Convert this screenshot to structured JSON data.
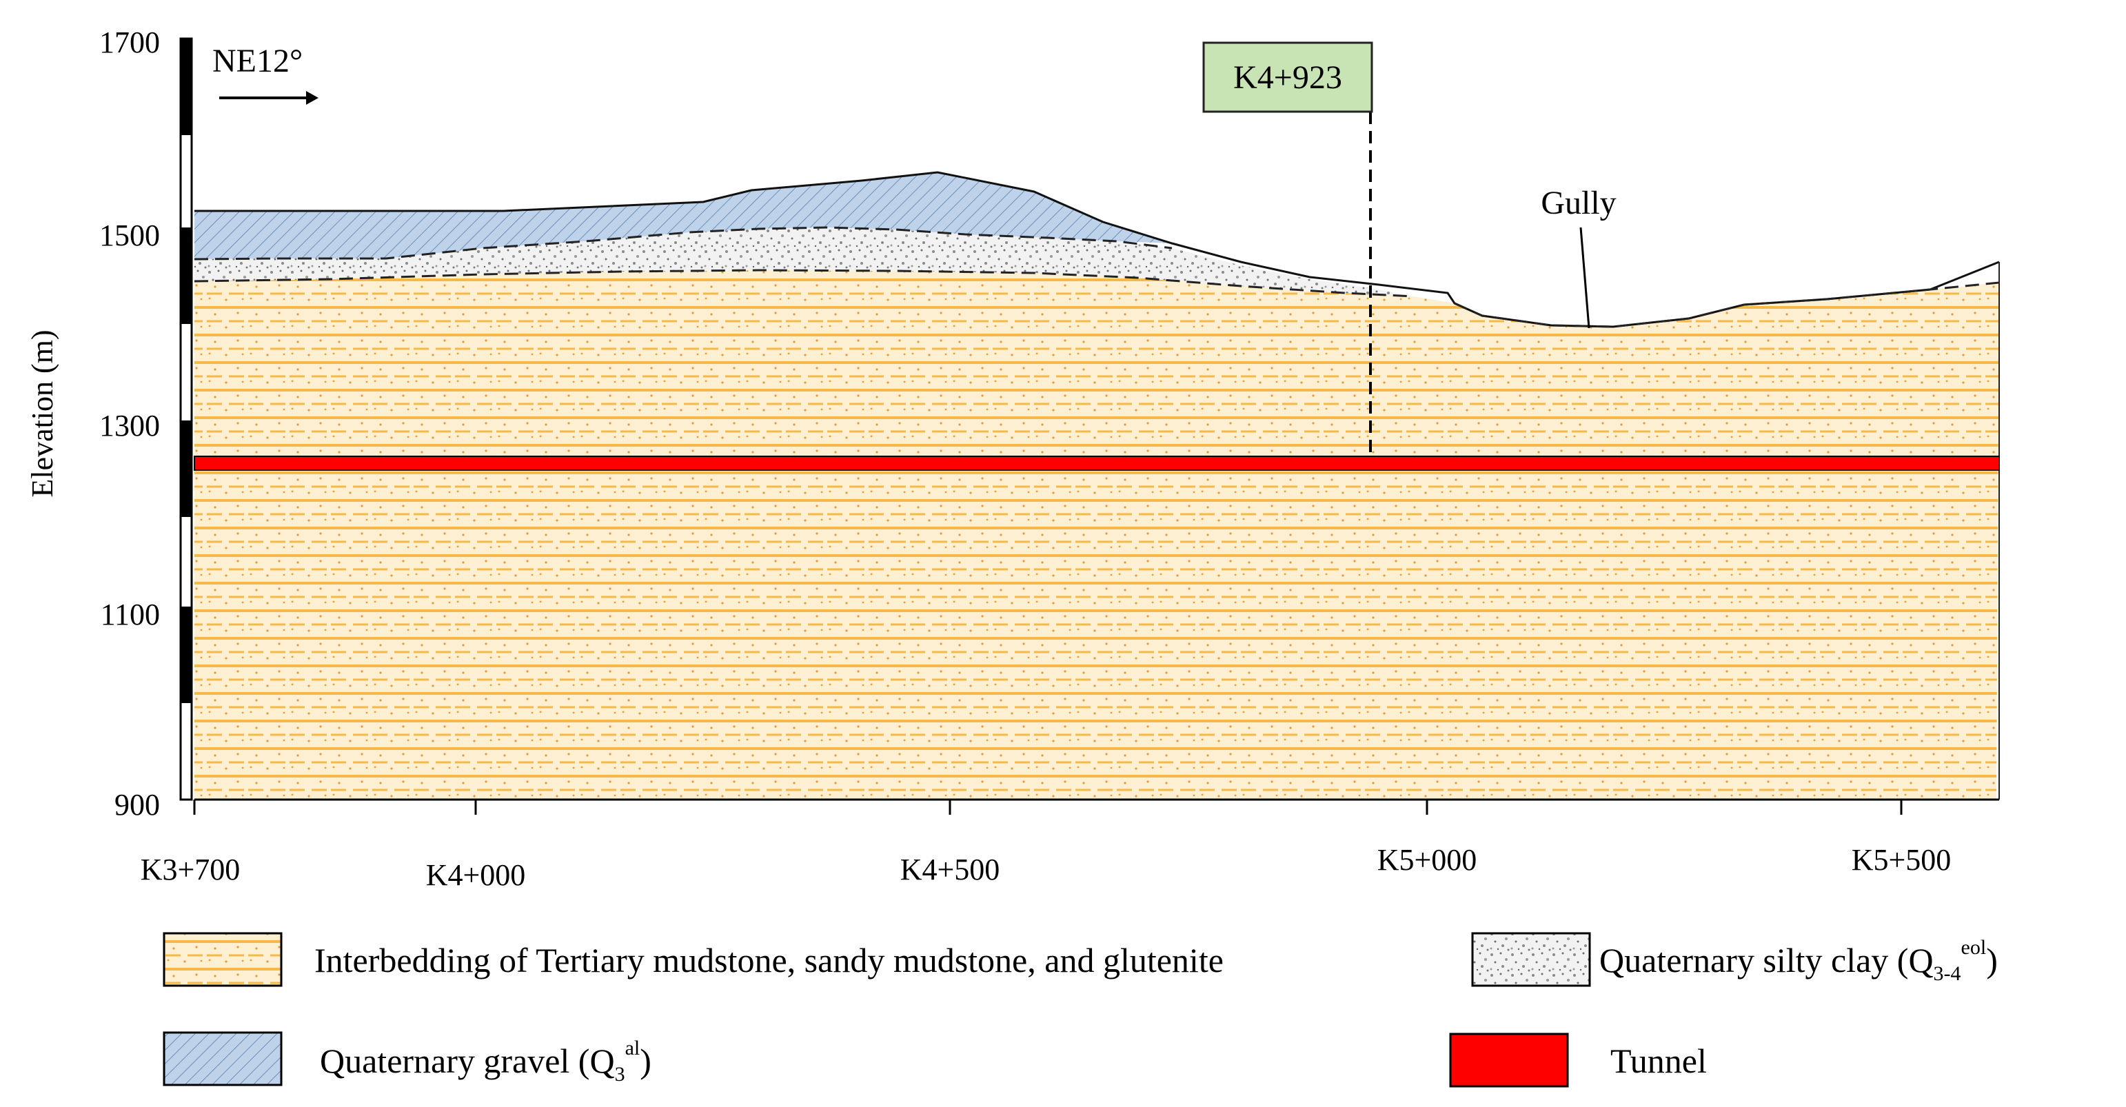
{
  "y_axis": {
    "label": "Elevation (m)",
    "ticks": [
      "1700",
      "1500",
      "1300",
      "1100",
      "900"
    ]
  },
  "x_axis": {
    "ticks": [
      "K3+700",
      "K4+000",
      "K4+500",
      "K5+000",
      "K5+500"
    ]
  },
  "annotations": {
    "direction": "NE12°",
    "section_marker": "K4+923",
    "gully": "Gully"
  },
  "legend": {
    "mudstone": "Interbedding of Tertiary mudstone, sandy mudstone, and glutenite",
    "silty_clay_prefix": "Quaternary silty clay (Q",
    "silty_clay_sub": "3-4",
    "silty_clay_sup": "eol",
    "silty_clay_suffix": ")",
    "gravel_prefix": "Quaternary gravel (Q",
    "gravel_sub": "3",
    "gravel_sup": "al",
    "gravel_suffix": ")",
    "tunnel": "Tunnel"
  },
  "colors": {
    "mudstone_fill": "#fdf0d2",
    "mudstone_line": "#f5b94a",
    "gravel_fill": "#bed2ea",
    "silty_fill": "#f2f2f2",
    "tunnel": "#ff0000",
    "marker_fill": "#c8e3b4"
  }
}
